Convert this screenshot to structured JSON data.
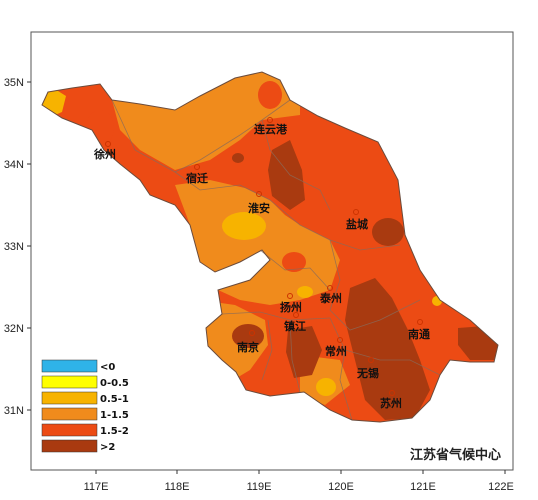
{
  "map": {
    "axis": {
      "x_ticks": [
        "117E",
        "118E",
        "119E",
        "120E",
        "121E",
        "122E"
      ],
      "y_ticks": [
        "35N",
        "34N",
        "33N",
        "32N",
        "31N"
      ]
    },
    "cities": [
      {
        "name": "连云港"
      },
      {
        "name": "徐州"
      },
      {
        "name": "宿迁"
      },
      {
        "name": "淮安"
      },
      {
        "name": "盐城"
      },
      {
        "name": "扬州"
      },
      {
        "name": "泰州"
      },
      {
        "name": "镇江"
      },
      {
        "name": "南京"
      },
      {
        "name": "常州"
      },
      {
        "name": "南通"
      },
      {
        "name": "无锡"
      },
      {
        "name": "苏州"
      }
    ],
    "legend": [
      {
        "label": "<0",
        "color": "#2fb3e8"
      },
      {
        "label": "0-0.5",
        "color": "#ffff00"
      },
      {
        "label": "0.5-1",
        "color": "#f7b300"
      },
      {
        "label": "1-1.5",
        "color": "#f08b1c"
      },
      {
        "label": "1.5-2",
        "color": "#ec4b14"
      },
      {
        "label": ">2",
        "color": "#a93a10"
      }
    ],
    "credit": "江苏省气候中心"
  }
}
